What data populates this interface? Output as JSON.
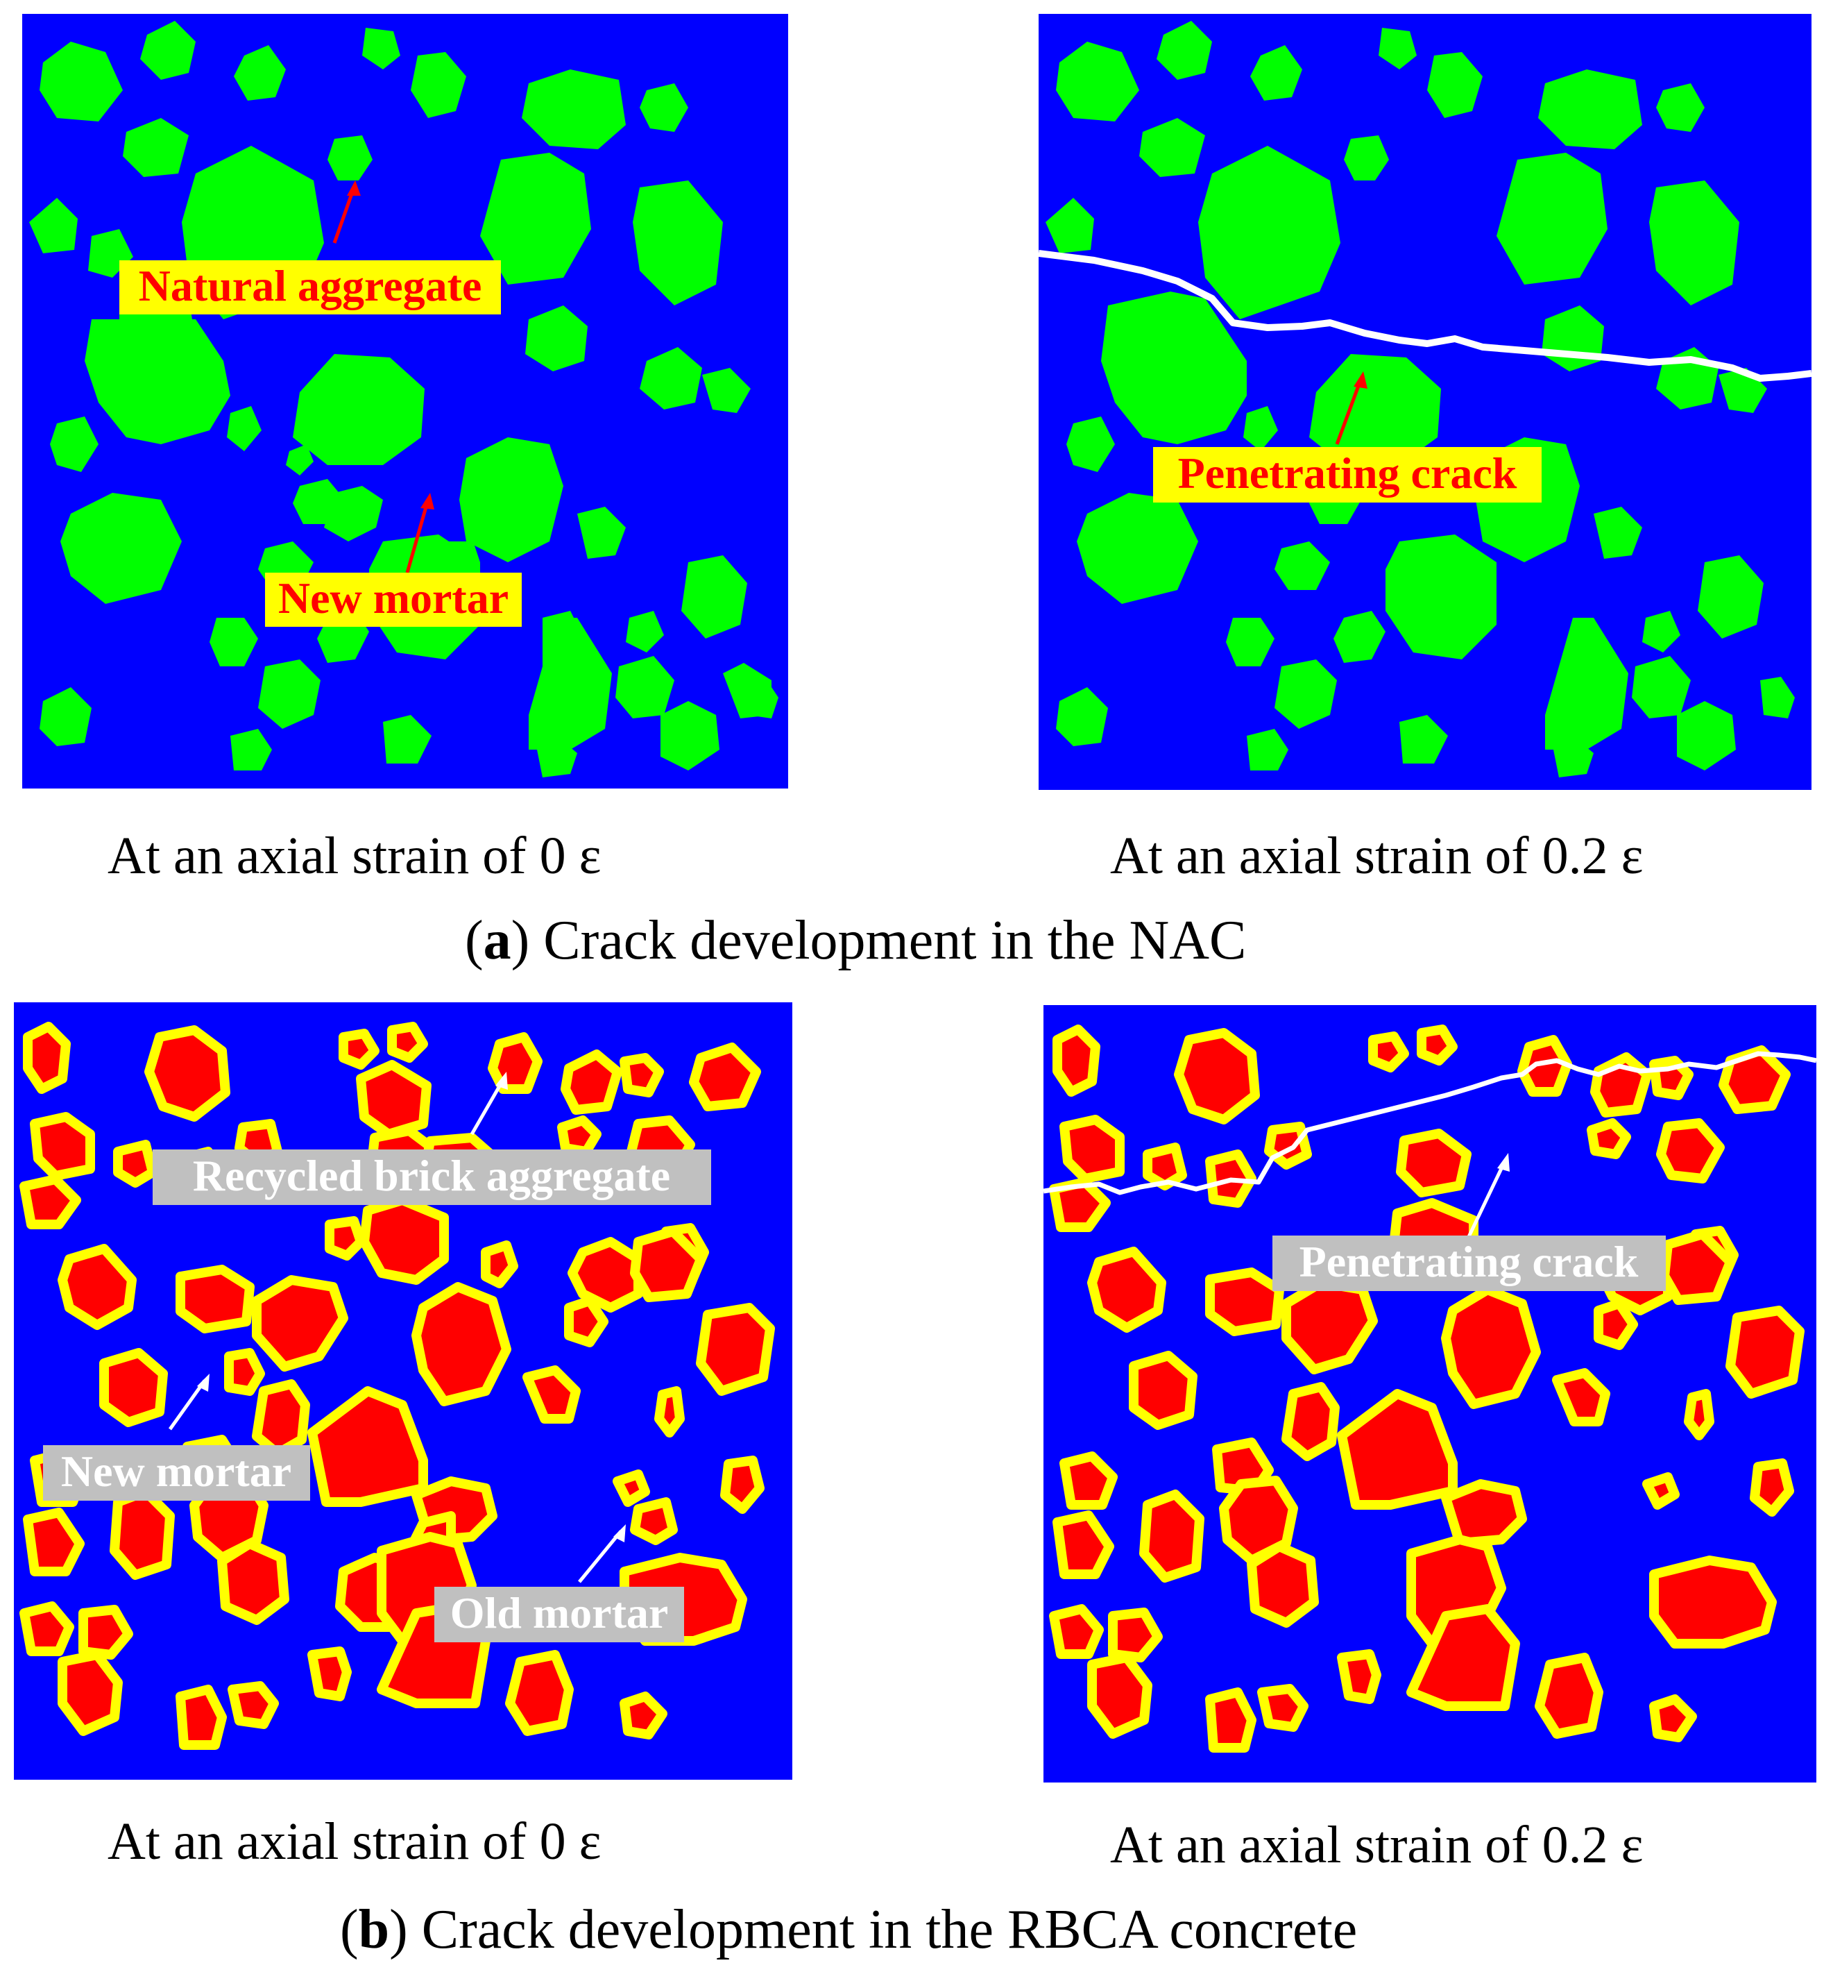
{
  "colors": {
    "matrix": "#0000ff",
    "natural_aggregate": "#00ff00",
    "brick_core": "#ff0000",
    "old_mortar": "#ffff00",
    "crack": "#ffffff",
    "label_bg_nac": "#ffff00",
    "label_text_nac": "#ff0000",
    "label_bg_rbca": "#c0c0c0",
    "label_text_rbca": "#ffffff",
    "arrow_nac": "#ff0000",
    "arrow_rbca": "#ffffff"
  },
  "panel_a_left": {
    "label_natural": "Natural aggregate",
    "label_mortar": "New mortar",
    "caption": "At an axial strain of 0  ε"
  },
  "panel_a_right": {
    "label_crack": "Penetrating crack",
    "caption": "At an axial strain of 0.2  ε"
  },
  "figure_a": {
    "letter": "a",
    "text": ") Crack development in the NAC"
  },
  "panel_b_left": {
    "label_brick": "Recycled brick aggregate",
    "label_new_mortar": "New mortar",
    "label_old_mortar": "Old mortar",
    "caption": "At an axial strain of 0  ε"
  },
  "panel_b_right": {
    "label_crack": "Penetrating crack",
    "caption": "At an axial strain of 0.2  ε"
  },
  "figure_b": {
    "letter": "b",
    "text": ") Crack development in the RBCA concrete"
  }
}
